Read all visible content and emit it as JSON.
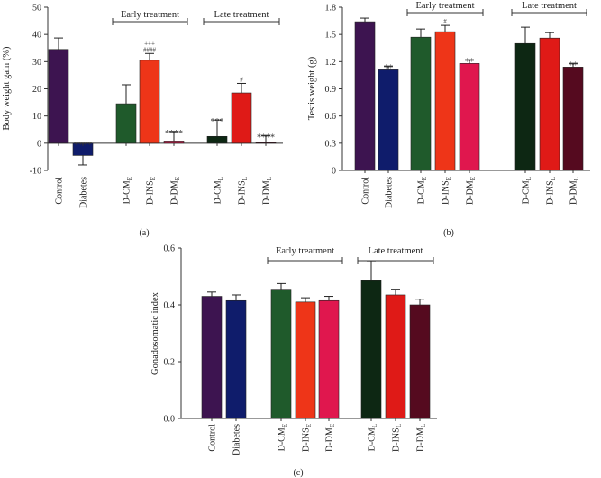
{
  "chart_data": [
    {
      "id": "a",
      "type": "bar",
      "panel_label": "(a)",
      "ylabel": "Body weight gain (%)",
      "ylim": [
        -10,
        50
      ],
      "yticks": [
        -10,
        0,
        10,
        20,
        30,
        40,
        50
      ],
      "groups": [
        {
          "label": "Early treatment",
          "from": 2,
          "to": 4
        },
        {
          "label": "Late treatment",
          "from": 5,
          "to": 7
        }
      ],
      "bars": [
        {
          "label": "Control",
          "sub": "",
          "value": 34.5,
          "error": 4.2,
          "color": "#3d1450",
          "annotation": []
        },
        {
          "label": "Diabetes",
          "sub": "",
          "value": -4.5,
          "error": 3.5,
          "color": "#0f1c6b",
          "annotation": [
            "****"
          ]
        },
        {
          "label": "D-CM",
          "sub": "E",
          "value": 14.5,
          "error": 7.0,
          "color": "#1f5a2b",
          "annotation": []
        },
        {
          "label": "D-INS",
          "sub": "E",
          "value": 30.5,
          "error": 2.5,
          "color": "#ee3518",
          "annotation": [
            "+++",
            "####"
          ]
        },
        {
          "label": "D-DM",
          "sub": "E",
          "value": 0.8,
          "error": 3.5,
          "color": "#e0174e",
          "annotation": [
            "****"
          ]
        },
        {
          "label": "D-CM",
          "sub": "L",
          "value": 2.5,
          "error": 6.0,
          "color": "#0d2713",
          "annotation": [
            "***"
          ]
        },
        {
          "label": "D-INS",
          "sub": "L",
          "value": 18.5,
          "error": 3.5,
          "color": "#df1a17",
          "annotation": [
            "#"
          ]
        },
        {
          "label": "D-DM",
          "sub": "L",
          "value": 0.3,
          "error": 2.5,
          "color": "#550a1f",
          "annotation": [
            "****"
          ]
        }
      ]
    },
    {
      "id": "b",
      "type": "bar",
      "panel_label": "(b)",
      "ylabel": "Testis weight (g)",
      "ylim": [
        0,
        1.8
      ],
      "yticks": [
        "0",
        "0.3",
        "0.6",
        "0.9",
        "1.2",
        "1.5",
        "1.8"
      ],
      "groups": [
        {
          "label": "Early treatment",
          "from": 2,
          "to": 4
        },
        {
          "label": "Late treatment",
          "from": 5,
          "to": 7
        }
      ],
      "bars": [
        {
          "label": "Control",
          "sub": "",
          "value": 1.64,
          "error": 0.04,
          "color": "#3d1450",
          "annotation": []
        },
        {
          "label": "Diabetes",
          "sub": "",
          "value": 1.11,
          "error": 0.04,
          "color": "#0f1c6b",
          "annotation": [
            "**"
          ]
        },
        {
          "label": "D-CM",
          "sub": "E",
          "value": 1.47,
          "error": 0.09,
          "color": "#1f5a2b",
          "annotation": []
        },
        {
          "label": "D-INS",
          "sub": "E",
          "value": 1.53,
          "error": 0.07,
          "color": "#ee3518",
          "annotation": [
            "#"
          ]
        },
        {
          "label": "D-DM",
          "sub": "E",
          "value": 1.18,
          "error": 0.04,
          "color": "#e0174e",
          "annotation": [
            "**"
          ]
        },
        {
          "label": "D-CM",
          "sub": "L",
          "value": 1.4,
          "error": 0.18,
          "color": "#0d2713",
          "annotation": []
        },
        {
          "label": "D-INS",
          "sub": "L",
          "value": 1.46,
          "error": 0.06,
          "color": "#df1a17",
          "annotation": []
        },
        {
          "label": "D-DM",
          "sub": "L",
          "value": 1.14,
          "error": 0.04,
          "color": "#550a1f",
          "annotation": [
            "**"
          ]
        }
      ]
    },
    {
      "id": "c",
      "type": "bar",
      "panel_label": "(c)",
      "ylabel": "Gonadosomatic index",
      "ylim": [
        0,
        0.6
      ],
      "yticks": [
        "0.0",
        "0.2",
        "0.4",
        "0.6"
      ],
      "groups": [
        {
          "label": "Early treatment",
          "from": 2,
          "to": 4
        },
        {
          "label": "Late treatment",
          "from": 5,
          "to": 7
        }
      ],
      "bars": [
        {
          "label": "Control",
          "sub": "",
          "value": 0.43,
          "error": 0.015,
          "color": "#3d1450",
          "annotation": []
        },
        {
          "label": "Diabetes",
          "sub": "",
          "value": 0.415,
          "error": 0.02,
          "color": "#0f1c6b",
          "annotation": []
        },
        {
          "label": "D-CM",
          "sub": "E",
          "value": 0.455,
          "error": 0.02,
          "color": "#1f5a2b",
          "annotation": []
        },
        {
          "label": "D-INS",
          "sub": "E",
          "value": 0.41,
          "error": 0.015,
          "color": "#ee3518",
          "annotation": []
        },
        {
          "label": "D-DM",
          "sub": "E",
          "value": 0.415,
          "error": 0.015,
          "color": "#e0174e",
          "annotation": []
        },
        {
          "label": "D-CM",
          "sub": "L",
          "value": 0.485,
          "error": 0.07,
          "color": "#0d2713",
          "annotation": []
        },
        {
          "label": "D-INS",
          "sub": "L",
          "value": 0.435,
          "error": 0.02,
          "color": "#df1a17",
          "annotation": []
        },
        {
          "label": "D-DM",
          "sub": "L",
          "value": 0.4,
          "error": 0.02,
          "color": "#550a1f",
          "annotation": []
        }
      ]
    }
  ]
}
